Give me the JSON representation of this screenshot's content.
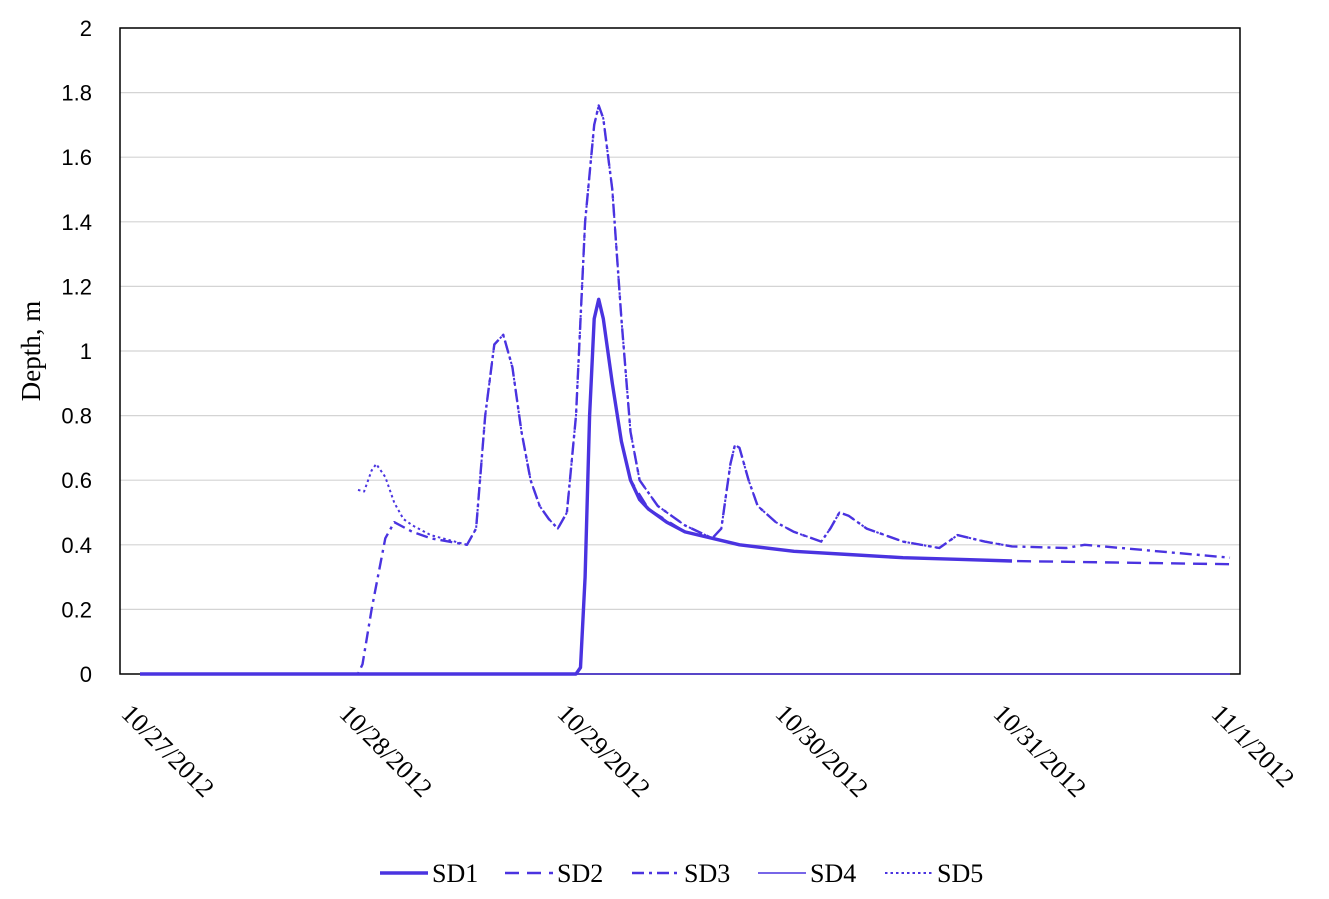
{
  "chart_data": {
    "type": "line",
    "title": "",
    "xlabel": "",
    "ylabel": "Depth, m",
    "xlim": [
      "10/27/2012",
      "11/1/2012"
    ],
    "ylim": [
      0,
      2
    ],
    "x_ticks": [
      "10/27/2012",
      "10/28/2012",
      "10/29/2012",
      "10/30/2012",
      "10/31/2012",
      "11/1/2012"
    ],
    "y_ticks": [
      "0",
      "0.2",
      "0.4",
      "0.6",
      "0.8",
      "1",
      "1.2",
      "1.4",
      "1.6",
      "1.8",
      "2"
    ],
    "grid": "horizontal",
    "legend_position": "bottom",
    "line_color": "#4a33e0",
    "series": [
      {
        "name": "SD1",
        "style": "solid-thick",
        "points": [
          [
            "10/27/2012 00:00",
            0
          ],
          [
            "10/28/2012 00:00",
            0
          ],
          [
            "10/28/2012 12:00",
            0
          ],
          [
            "10/29/2012 00:00",
            0
          ],
          [
            "10/29/2012 00:30",
            0.02
          ],
          [
            "10/29/2012 01:00",
            0.3
          ],
          [
            "10/29/2012 01:30",
            0.8
          ],
          [
            "10/29/2012 02:00",
            1.1
          ],
          [
            "10/29/2012 02:30",
            1.16
          ],
          [
            "10/29/2012 03:00",
            1.1
          ],
          [
            "10/29/2012 04:00",
            0.9
          ],
          [
            "10/29/2012 05:00",
            0.72
          ],
          [
            "10/29/2012 06:00",
            0.6
          ],
          [
            "10/29/2012 07:00",
            0.54
          ],
          [
            "10/29/2012 08:00",
            0.51
          ],
          [
            "10/29/2012 10:00",
            0.47
          ],
          [
            "10/29/2012 12:00",
            0.44
          ],
          [
            "10/29/2012 15:00",
            0.42
          ],
          [
            "10/29/2012 18:00",
            0.4
          ],
          [
            "10/30/2012 00:00",
            0.38
          ],
          [
            "10/30/2012 06:00",
            0.37
          ],
          [
            "10/30/2012 12:00",
            0.36
          ],
          [
            "10/30/2012 18:00",
            0.355
          ],
          [
            "10/31/2012 00:00",
            0.35
          ]
        ]
      },
      {
        "name": "SD2",
        "style": "dash",
        "points": [
          [
            "10/27/2012 00:00",
            0
          ],
          [
            "10/29/2012 00:00",
            0
          ],
          [
            "10/29/2012 00:30",
            0.02
          ],
          [
            "10/29/2012 01:00",
            0.3
          ],
          [
            "10/29/2012 01:30",
            0.8
          ],
          [
            "10/29/2012 02:00",
            1.1
          ],
          [
            "10/29/2012 02:30",
            1.16
          ],
          [
            "10/29/2012 03:00",
            1.1
          ],
          [
            "10/29/2012 04:00",
            0.9
          ],
          [
            "10/29/2012 05:00",
            0.72
          ],
          [
            "10/29/2012 06:00",
            0.6
          ],
          [
            "10/29/2012 08:00",
            0.51
          ],
          [
            "10/29/2012 12:00",
            0.44
          ],
          [
            "10/29/2012 18:00",
            0.4
          ],
          [
            "10/30/2012 00:00",
            0.38
          ],
          [
            "10/30/2012 12:00",
            0.36
          ],
          [
            "10/31/2012 00:00",
            0.35
          ],
          [
            "10/31/2012 12:00",
            0.345
          ],
          [
            "11/1/2012 00:00",
            0.34
          ]
        ]
      },
      {
        "name": "SD3",
        "style": "dash-dot",
        "points": [
          [
            "10/27/2012 00:00",
            0
          ],
          [
            "10/28/2012 00:00",
            0
          ],
          [
            "10/28/2012 00:30",
            0.03
          ],
          [
            "10/28/2012 01:30",
            0.2
          ],
          [
            "10/28/2012 03:00",
            0.42
          ],
          [
            "10/28/2012 04:00",
            0.47
          ],
          [
            "10/28/2012 06:00",
            0.44
          ],
          [
            "10/28/2012 08:00",
            0.42
          ],
          [
            "10/28/2012 10:00",
            0.41
          ],
          [
            "10/28/2012 12:00",
            0.4
          ],
          [
            "10/28/2012 13:00",
            0.45
          ],
          [
            "10/28/2012 14:00",
            0.8
          ],
          [
            "10/28/2012 15:00",
            1.02
          ],
          [
            "10/28/2012 16:00",
            1.05
          ],
          [
            "10/28/2012 17:00",
            0.95
          ],
          [
            "10/28/2012 18:00",
            0.75
          ],
          [
            "10/28/2012 19:00",
            0.6
          ],
          [
            "10/28/2012 20:00",
            0.52
          ],
          [
            "10/28/2012 21:00",
            0.48
          ],
          [
            "10/28/2012 22:00",
            0.45
          ],
          [
            "10/28/2012 23:00",
            0.5
          ],
          [
            "10/29/2012 00:00",
            0.8
          ],
          [
            "10/29/2012 01:00",
            1.4
          ],
          [
            "10/29/2012 02:00",
            1.7
          ],
          [
            "10/29/2012 02:30",
            1.76
          ],
          [
            "10/29/2012 03:00",
            1.72
          ],
          [
            "10/29/2012 04:00",
            1.5
          ],
          [
            "10/29/2012 05:00",
            1.1
          ],
          [
            "10/29/2012 06:00",
            0.75
          ],
          [
            "10/29/2012 07:00",
            0.6
          ],
          [
            "10/29/2012 09:00",
            0.52
          ],
          [
            "10/29/2012 12:00",
            0.46
          ],
          [
            "10/29/2012 15:00",
            0.42
          ],
          [
            "10/29/2012 16:00",
            0.45
          ],
          [
            "10/29/2012 17:00",
            0.65
          ],
          [
            "10/29/2012 17:30",
            0.71
          ],
          [
            "10/29/2012 18:00",
            0.7
          ],
          [
            "10/29/2012 19:00",
            0.6
          ],
          [
            "10/29/2012 20:00",
            0.52
          ],
          [
            "10/29/2012 22:00",
            0.47
          ],
          [
            "10/30/2012 00:00",
            0.44
          ],
          [
            "10/30/2012 03:00",
            0.41
          ],
          [
            "10/30/2012 04:00",
            0.45
          ],
          [
            "10/30/2012 05:00",
            0.5
          ],
          [
            "10/30/2012 06:00",
            0.49
          ],
          [
            "10/30/2012 08:00",
            0.45
          ],
          [
            "10/30/2012 12:00",
            0.41
          ],
          [
            "10/30/2012 16:00",
            0.39
          ],
          [
            "10/30/2012 17:00",
            0.41
          ],
          [
            "10/30/2012 18:00",
            0.43
          ],
          [
            "10/30/2012 21:00",
            0.41
          ],
          [
            "10/31/2012 00:00",
            0.395
          ],
          [
            "10/31/2012 06:00",
            0.39
          ],
          [
            "10/31/2012 08:00",
            0.4
          ],
          [
            "10/31/2012 12:00",
            0.39
          ],
          [
            "11/1/2012 00:00",
            0.36
          ]
        ]
      },
      {
        "name": "SD4",
        "style": "solid-thin",
        "points": [
          [
            "10/27/2012 00:00",
            0
          ],
          [
            "11/1/2012 00:00",
            0
          ]
        ]
      },
      {
        "name": "SD5",
        "style": "dot",
        "points": [
          [
            "10/28/2012 00:00",
            0.57
          ],
          [
            "10/28/2012 00:40",
            0.565
          ],
          [
            "10/28/2012 01:30",
            0.63
          ],
          [
            "10/28/2012 02:00",
            0.65
          ],
          [
            "10/28/2012 03:00",
            0.61
          ],
          [
            "10/28/2012 04:00",
            0.53
          ],
          [
            "10/28/2012 05:00",
            0.48
          ],
          [
            "10/28/2012 06:00",
            0.46
          ],
          [
            "10/28/2012 08:00",
            0.43
          ],
          [
            "10/28/2012 10:00",
            0.415
          ],
          [
            "10/28/2012 12:00",
            0.4
          ],
          [
            "10/28/2012 13:00",
            0.45
          ],
          [
            "10/28/2012 14:00",
            0.8
          ],
          [
            "10/28/2012 15:00",
            1.02
          ],
          [
            "10/28/2012 16:00",
            1.05
          ],
          [
            "10/28/2012 17:00",
            0.95
          ],
          [
            "10/28/2012 18:00",
            0.75
          ],
          [
            "10/28/2012 19:00",
            0.6
          ],
          [
            "10/28/2012 20:00",
            0.52
          ],
          [
            "10/28/2012 21:00",
            0.48
          ],
          [
            "10/28/2012 22:00",
            0.45
          ],
          [
            "10/28/2012 23:00",
            0.5
          ],
          [
            "10/29/2012 00:00",
            0.8
          ],
          [
            "10/29/2012 01:00",
            1.4
          ],
          [
            "10/29/2012 02:00",
            1.7
          ],
          [
            "10/29/2012 02:30",
            1.76
          ],
          [
            "10/29/2012 03:00",
            1.72
          ],
          [
            "10/29/2012 04:00",
            1.5
          ],
          [
            "10/29/2012 05:00",
            1.1
          ],
          [
            "10/29/2012 06:00",
            0.75
          ],
          [
            "10/29/2012 07:00",
            0.6
          ],
          [
            "10/29/2012 09:00",
            0.52
          ],
          [
            "10/29/2012 12:00",
            0.46
          ],
          [
            "10/29/2012 15:00",
            0.42
          ],
          [
            "10/29/2012 16:00",
            0.45
          ],
          [
            "10/29/2012 17:00",
            0.65
          ],
          [
            "10/29/2012 17:30",
            0.71
          ],
          [
            "10/29/2012 18:00",
            0.7
          ],
          [
            "10/29/2012 19:00",
            0.6
          ],
          [
            "10/29/2012 20:00",
            0.52
          ],
          [
            "10/29/2012 22:00",
            0.47
          ],
          [
            "10/30/2012 00:00",
            0.44
          ],
          [
            "10/30/2012 03:00",
            0.41
          ],
          [
            "10/30/2012 04:00",
            0.45
          ],
          [
            "10/30/2012 05:00",
            0.5
          ],
          [
            "10/30/2012 06:00",
            0.49
          ],
          [
            "10/30/2012 08:00",
            0.45
          ],
          [
            "10/30/2012 12:00",
            0.41
          ],
          [
            "10/30/2012 16:00",
            0.39
          ],
          [
            "10/30/2012 17:00",
            0.41
          ],
          [
            "10/30/2012 18:00",
            0.43
          ],
          [
            "10/30/2012 21:00",
            0.41
          ],
          [
            "10/31/2012 00:00",
            0.395
          ]
        ]
      }
    ]
  }
}
